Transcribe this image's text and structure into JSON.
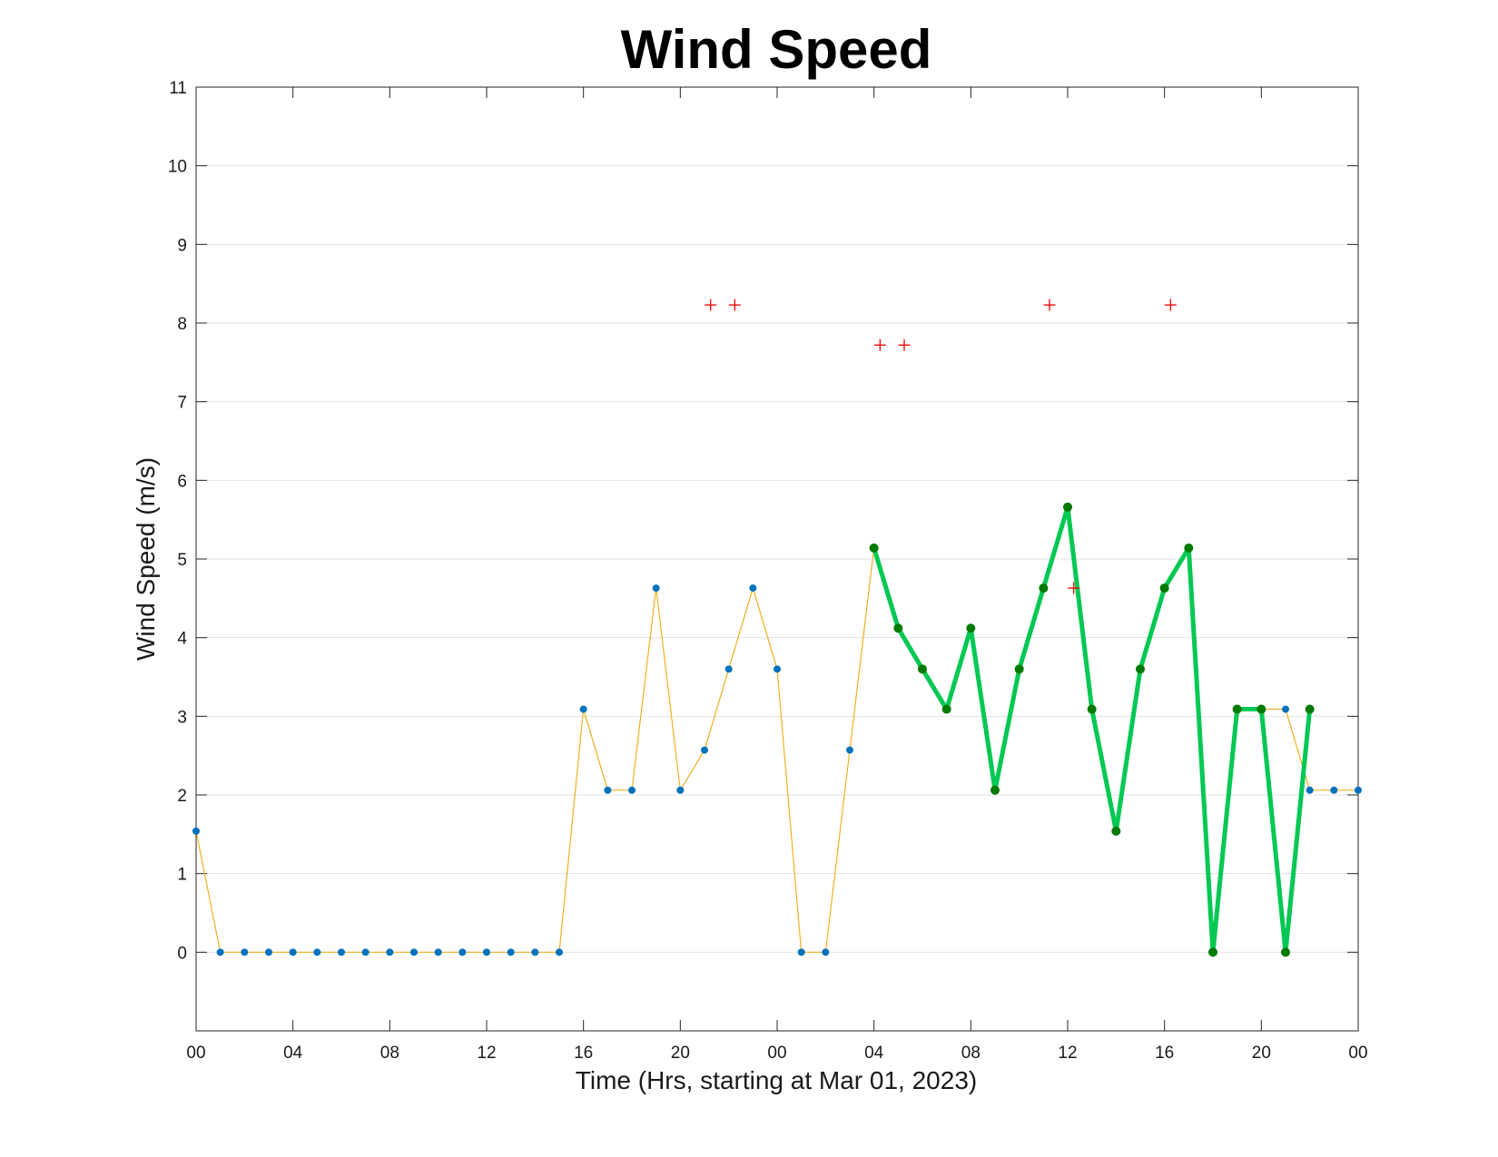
{
  "chart_data": {
    "type": "line",
    "title": "Wind Speed",
    "xlabel": "Time (Hrs, starting at Mar 01, 2023)",
    "ylabel": "Wind Speed (m/s)",
    "xlim": [
      0,
      48
    ],
    "ylim": [
      -1,
      11
    ],
    "x_unit": "hours",
    "xticks": [
      0,
      4,
      8,
      12,
      16,
      20,
      24,
      28,
      32,
      36,
      40,
      44,
      48
    ],
    "xtick_labels": [
      "00",
      "04",
      "08",
      "12",
      "16",
      "20",
      "00",
      "04",
      "08",
      "12",
      "16",
      "20",
      "00"
    ],
    "yticks": [
      0,
      1,
      2,
      3,
      4,
      5,
      6,
      7,
      8,
      9,
      10,
      11
    ],
    "ytick_labels": [
      "0",
      "1",
      "2",
      "3",
      "4",
      "5",
      "6",
      "7",
      "8",
      "9",
      "10",
      "11"
    ],
    "grid": "horizontal",
    "series": [
      {
        "style": "thin-line-dots",
        "line_color": "#edb120",
        "marker_color": "#0072bd",
        "x": [
          0,
          1,
          2,
          3,
          4,
          5,
          6,
          7,
          8,
          9,
          10,
          11,
          12,
          13,
          14,
          15,
          16,
          17,
          18,
          19,
          20,
          21,
          22,
          23,
          24,
          25,
          26,
          27,
          28,
          44,
          45,
          46,
          47,
          48
        ],
        "values": [
          1.54,
          0,
          0,
          0,
          0,
          0,
          0,
          0,
          0,
          0,
          0,
          0,
          0,
          0,
          0,
          0,
          3.09,
          2.06,
          2.06,
          4.63,
          2.06,
          2.57,
          3.6,
          4.63,
          3.6,
          0,
          0,
          2.57,
          5.14,
          3.09,
          3.09,
          2.06,
          2.06,
          2.06
        ]
      },
      {
        "style": "thick-line-dots",
        "line_color": "#00c853",
        "marker_color": "#007a00",
        "x": [
          28,
          29,
          30,
          31,
          32,
          33,
          34,
          35,
          36,
          37,
          38,
          39,
          40,
          41,
          42,
          43,
          44,
          45,
          46
        ],
        "values": [
          5.14,
          4.12,
          3.6,
          3.09,
          4.12,
          2.06,
          3.6,
          4.63,
          5.66,
          3.09,
          1.54,
          3.6,
          4.63,
          5.14,
          0,
          3.09,
          3.09,
          0,
          3.09
        ]
      },
      {
        "style": "plus-markers",
        "marker_color": "#ff0000",
        "x": [
          21.25,
          22.25,
          28.25,
          29.25,
          35.25,
          36.25,
          40.25
        ],
        "values": [
          8.23,
          8.23,
          7.72,
          7.72,
          8.23,
          4.63,
          8.23
        ]
      }
    ]
  }
}
